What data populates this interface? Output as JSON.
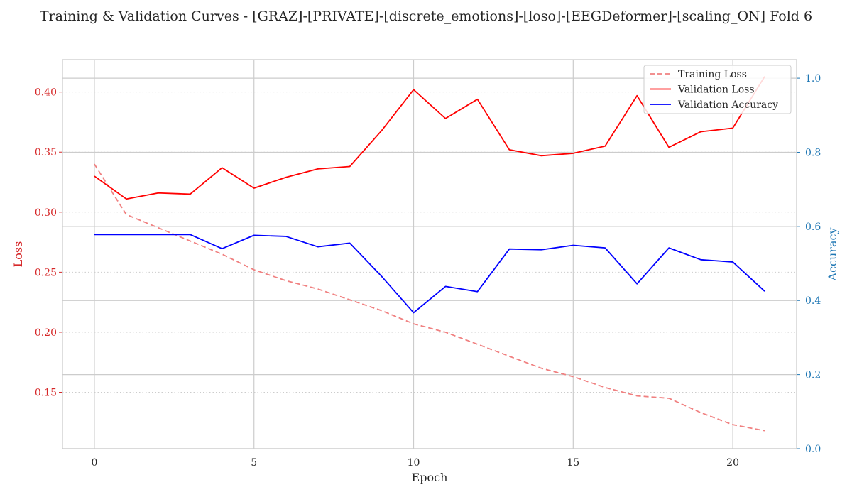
{
  "chart_data": {
    "type": "line",
    "title": "Training & Validation Curves - [GRAZ]-[PRIVATE]-[discrete_emotions]-[loso]-[EEGDeformer]-[scaling_ON] Fold 6",
    "xlabel": "Epoch",
    "ylabel_left": "Loss",
    "ylabel_right": "Accuracy",
    "xlim": [
      -1,
      22
    ],
    "ylim_left": [
      0.103,
      0.427
    ],
    "ylim_right": [
      0.0,
      1.05
    ],
    "x_ticks": [
      0,
      5,
      10,
      15,
      20
    ],
    "y_left_ticks": [
      0.15,
      0.2,
      0.25,
      0.3,
      0.35,
      0.4
    ],
    "y_left_tick_labels": [
      "0.15",
      "0.20",
      "0.25",
      "0.30",
      "0.35",
      "0.40"
    ],
    "y_right_ticks": [
      0.0,
      0.2,
      0.4,
      0.6,
      0.8,
      1.0
    ],
    "y_right_tick_labels": [
      "0.0",
      "0.2",
      "0.4",
      "0.6",
      "0.8",
      "1.0"
    ],
    "grid": true,
    "legend_position": "top-right",
    "x": [
      0,
      1,
      2,
      3,
      4,
      5,
      6,
      7,
      8,
      9,
      10,
      11,
      12,
      13,
      14,
      15,
      16,
      17,
      18,
      19,
      20,
      21
    ],
    "series": [
      {
        "name": "Training Loss",
        "axis": "left",
        "color": "#f08080",
        "dash": true,
        "values": [
          0.34,
          0.298,
          0.287,
          0.276,
          0.265,
          0.252,
          0.243,
          0.236,
          0.227,
          0.218,
          0.207,
          0.2,
          0.19,
          0.18,
          0.17,
          0.163,
          0.154,
          0.147,
          0.145,
          0.133,
          0.123,
          0.118
        ]
      },
      {
        "name": "Validation Loss",
        "axis": "left",
        "color": "#ff0000",
        "dash": false,
        "values": [
          0.33,
          0.311,
          0.316,
          0.315,
          0.337,
          0.32,
          0.329,
          0.336,
          0.338,
          0.368,
          0.402,
          0.378,
          0.394,
          0.352,
          0.347,
          0.349,
          0.355,
          0.397,
          0.354,
          0.367,
          0.37,
          0.413
        ]
      },
      {
        "name": "Validation Accuracy",
        "axis": "right",
        "color": "#0000ff",
        "dash": false,
        "values": [
          0.578,
          0.578,
          0.578,
          0.578,
          0.54,
          0.576,
          0.573,
          0.545,
          0.555,
          0.465,
          0.367,
          0.438,
          0.424,
          0.539,
          0.537,
          0.549,
          0.542,
          0.445,
          0.542,
          0.51,
          0.504,
          0.425
        ]
      }
    ]
  }
}
